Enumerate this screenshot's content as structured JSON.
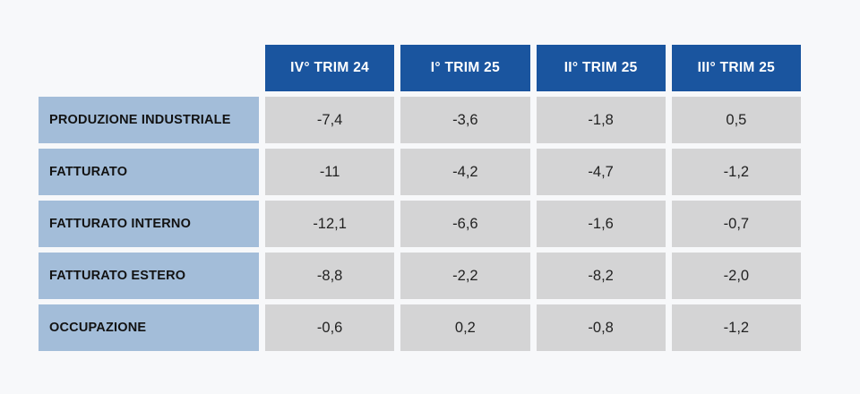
{
  "table": {
    "columns": [
      "IV° TRIM 24",
      "I° TRIM 25",
      "II° TRIM 25",
      "III° TRIM 25"
    ],
    "rows": [
      {
        "label": "PRODUZIONE INDUSTRIALE",
        "values": [
          "-7,4",
          "-3,6",
          "-1,8",
          "0,5"
        ]
      },
      {
        "label": "FATTURATO",
        "values": [
          "-11",
          "-4,2",
          "-4,7",
          "-1,2"
        ]
      },
      {
        "label": "FATTURATO INTERNO",
        "values": [
          "-12,1",
          "-6,6",
          "-1,6",
          "-0,7"
        ]
      },
      {
        "label": "FATTURATO ESTERO",
        "values": [
          "-8,8",
          "-2,2",
          "-8,2",
          "-2,0"
        ]
      },
      {
        "label": "OCCUPAZIONE",
        "values": [
          "-0,6",
          "0,2",
          "-0,8",
          "-1,2"
        ]
      }
    ],
    "colors": {
      "page_bg": "#f7f8fa",
      "header_bg": "#1a559f",
      "header_text": "#ffffff",
      "label_bg": "#a3bdd9",
      "label_text": "#121212",
      "cell_bg": "#d4d4d5",
      "cell_text": "#222222"
    }
  },
  "chart_data": {
    "type": "table",
    "title": "",
    "row_header_label": "",
    "columns": [
      "IV° TRIM 24",
      "I° TRIM 25",
      "II° TRIM 25",
      "III° TRIM 25"
    ],
    "rows": [
      {
        "label": "PRODUZIONE INDUSTRIALE",
        "display_values": [
          "-7,4",
          "-3,6",
          "-1,8",
          "0,5"
        ],
        "numeric_values": [
          -7.4,
          -3.6,
          -1.8,
          0.5
        ]
      },
      {
        "label": "FATTURATO",
        "display_values": [
          "-11",
          "-4,2",
          "-4,7",
          "-1,2"
        ],
        "numeric_values": [
          -11,
          -4.2,
          -4.7,
          -1.2
        ]
      },
      {
        "label": "FATTURATO INTERNO",
        "display_values": [
          "-12,1",
          "-6,6",
          "-1,6",
          "-0,7"
        ],
        "numeric_values": [
          -12.1,
          -6.6,
          -1.6,
          -0.7
        ]
      },
      {
        "label": "FATTURATO ESTERO",
        "display_values": [
          "-8,8",
          "-2,2",
          "-8,2",
          "-2,0"
        ],
        "numeric_values": [
          -8.8,
          -2.2,
          -8.2,
          -2.0
        ]
      },
      {
        "label": "OCCUPAZIONE",
        "display_values": [
          "-0,6",
          "0,2",
          "-0,8",
          "-1,2"
        ],
        "numeric_values": [
          -0.6,
          0.2,
          -0.8,
          -1.2
        ]
      }
    ],
    "decimal_separator": ",",
    "legend_position": "none",
    "grid": false
  }
}
